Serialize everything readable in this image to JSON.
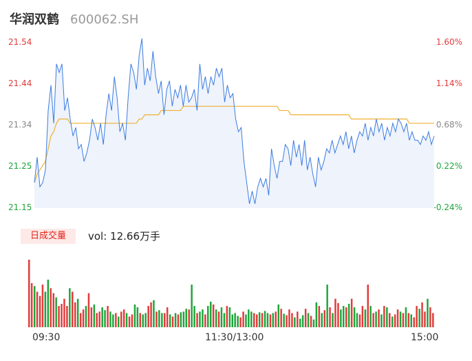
{
  "header": {
    "name": "华润双鹤",
    "code": "600062.SH"
  },
  "volume_panel": {
    "tag": "日成交量",
    "label": "vol: 12.66万手"
  },
  "colors": {
    "price_line": "#3b7be0",
    "avg_line": "#f0b030",
    "fill": "#eef3fc",
    "up": "#e23b3b",
    "down": "#1ea53a",
    "grid_text": "#888888"
  },
  "chart_data": [
    {
      "type": "line",
      "x_labels": [
        "09:30",
        "11:30/13:00",
        "15:00"
      ],
      "ylim": [
        21.15,
        21.54
      ],
      "y_ticks": [
        {
          "price": "21.54",
          "pct": "1.60%",
          "cls": "up"
        },
        {
          "price": "21.44",
          "pct": "1.14%",
          "cls": "up"
        },
        {
          "price": "21.34",
          "pct": "0.68%",
          "cls": "flat"
        },
        {
          "price": "21.25",
          "pct": "0.22%",
          "cls": "down"
        },
        {
          "price": "21.15",
          "pct": "-0.24%",
          "cls": "down"
        }
      ],
      "series": [
        {
          "values": [
            21.21,
            21.27,
            21.2,
            21.21,
            21.24,
            21.38,
            21.44,
            21.35,
            21.49,
            21.47,
            21.49,
            21.38,
            21.41,
            21.36,
            21.32,
            21.34,
            21.29,
            21.3,
            21.26,
            21.28,
            21.31,
            21.36,
            21.34,
            21.31,
            21.35,
            21.3,
            21.37,
            21.42,
            21.38,
            21.46,
            21.41,
            21.33,
            21.35,
            21.31,
            21.41,
            21.49,
            21.47,
            21.43,
            21.51,
            21.55,
            21.44,
            21.48,
            21.45,
            21.52,
            21.46,
            21.42,
            21.45,
            21.37,
            21.43,
            21.45,
            21.39,
            21.43,
            21.41,
            21.44,
            21.39,
            21.44,
            21.4,
            21.41,
            21.43,
            21.38,
            21.49,
            21.43,
            21.46,
            21.42,
            21.46,
            21.44,
            21.48,
            21.46,
            21.48,
            21.4,
            21.44,
            21.41,
            21.42,
            21.36,
            21.33,
            21.34,
            21.26,
            21.21,
            21.16,
            21.19,
            21.16,
            21.2,
            21.22,
            21.2,
            21.22,
            21.18,
            21.29,
            21.25,
            21.22,
            21.26,
            21.26,
            21.3,
            21.29,
            21.25,
            21.31,
            21.27,
            21.3,
            21.25,
            21.31,
            21.24,
            21.27,
            21.23,
            21.2,
            21.27,
            21.24,
            21.26,
            21.29,
            21.28,
            21.31,
            21.28,
            21.3,
            21.32,
            21.3,
            21.33,
            21.29,
            21.32,
            21.28,
            21.31,
            21.33,
            21.32,
            21.35,
            21.31,
            21.34,
            21.32,
            21.36,
            21.33,
            21.35,
            21.31,
            21.34,
            21.32,
            21.35,
            21.33,
            21.36,
            21.35,
            21.33,
            21.35,
            21.31,
            21.33,
            21.31,
            21.31,
            21.3,
            21.32,
            21.31,
            21.33,
            21.3,
            21.32
          ]
        },
        {
          "values": [
            21.21,
            21.23,
            21.24,
            21.25,
            21.26,
            21.29,
            21.32,
            21.33,
            21.35,
            21.36,
            21.36,
            21.36,
            21.36,
            21.35,
            21.35,
            21.35,
            21.35,
            21.35,
            21.35,
            21.35,
            21.35,
            21.35,
            21.35,
            21.35,
            21.35,
            21.35,
            21.35,
            21.35,
            21.35,
            21.35,
            21.35,
            21.35,
            21.35,
            21.35,
            21.35,
            21.35,
            21.35,
            21.35,
            21.36,
            21.36,
            21.37,
            21.37,
            21.37,
            21.37,
            21.37,
            21.37,
            21.38,
            21.38,
            21.38,
            21.38,
            21.38,
            21.38,
            21.38,
            21.38,
            21.39,
            21.39,
            21.39,
            21.39,
            21.39,
            21.39,
            21.39,
            21.39,
            21.39,
            21.39,
            21.39,
            21.39,
            21.39,
            21.39,
            21.39,
            21.39,
            21.39,
            21.39,
            21.39,
            21.39,
            21.39,
            21.39,
            21.39,
            21.39,
            21.39,
            21.39,
            21.39,
            21.39,
            21.39,
            21.39,
            21.39,
            21.39,
            21.39,
            21.39,
            21.39,
            21.38,
            21.38,
            21.38,
            21.38,
            21.37,
            21.37,
            21.37,
            21.37,
            21.37,
            21.37,
            21.37,
            21.37,
            21.37,
            21.37,
            21.37,
            21.37,
            21.37,
            21.37,
            21.37,
            21.37,
            21.37,
            21.37,
            21.37,
            21.37,
            21.37,
            21.37,
            21.36,
            21.36,
            21.36,
            21.36,
            21.36,
            21.36,
            21.36,
            21.36,
            21.36,
            21.36,
            21.36,
            21.36,
            21.36,
            21.36,
            21.36,
            21.36,
            21.36,
            21.36,
            21.36,
            21.36,
            21.36,
            21.35,
            21.35,
            21.35,
            21.35,
            21.35,
            21.35,
            21.35,
            21.35,
            21.35,
            21.35
          ]
        }
      ]
    },
    {
      "type": "bar",
      "values": [
        95,
        62,
        58,
        50,
        44,
        60,
        50,
        67,
        55,
        48,
        42,
        30,
        33,
        40,
        30,
        55,
        50,
        35,
        40,
        20,
        25,
        30,
        48,
        28,
        32,
        20,
        22,
        28,
        24,
        30,
        22,
        18,
        20,
        15,
        22,
        25,
        20,
        15,
        18,
        32,
        28,
        20,
        18,
        20,
        30,
        35,
        38,
        22,
        24,
        20,
        20,
        28,
        18,
        15,
        20,
        18,
        21,
        22,
        26,
        25,
        60,
        30,
        20,
        22,
        25,
        18,
        30,
        36,
        32,
        25,
        22,
        28,
        20,
        30,
        28,
        18,
        20,
        16,
        14,
        22,
        18,
        25,
        22,
        20,
        18,
        21,
        20,
        23,
        20,
        18,
        20,
        22,
        32,
        26,
        19,
        17,
        25,
        20,
        14,
        22,
        12,
        17,
        26,
        20,
        16,
        11,
        35,
        30,
        20,
        24,
        60,
        28,
        20,
        40,
        34,
        25,
        30,
        28,
        33,
        40,
        28,
        20,
        18,
        30,
        25,
        60,
        30,
        20,
        22,
        25,
        18,
        30,
        28,
        20,
        15,
        18,
        25,
        22,
        20,
        28,
        20,
        18,
        14,
        30,
        26,
        35,
        22,
        40,
        28,
        20
      ],
      "colors": [
        "r",
        "r",
        "g",
        "r",
        "r",
        "r",
        "g",
        "g",
        "r",
        "r",
        "g",
        "r",
        "r",
        "r",
        "r",
        "g",
        "r",
        "r",
        "g",
        "r",
        "r",
        "g",
        "r",
        "r",
        "g",
        "r",
        "r",
        "g",
        "g",
        "r",
        "g",
        "g",
        "r",
        "g",
        "r",
        "r",
        "g",
        "r",
        "r",
        "g",
        "g",
        "r",
        "g",
        "g",
        "r",
        "r",
        "g",
        "r",
        "g",
        "g",
        "r",
        "r",
        "g",
        "r",
        "g",
        "r",
        "g",
        "g",
        "g",
        "r",
        "g",
        "g",
        "r",
        "g",
        "g",
        "r",
        "g",
        "g",
        "r",
        "g",
        "r",
        "g",
        "g",
        "r",
        "g",
        "g",
        "g",
        "g",
        "r",
        "r",
        "g",
        "g",
        "g",
        "r",
        "r",
        "g",
        "r",
        "g",
        "g",
        "r",
        "g",
        "r",
        "g",
        "r",
        "g",
        "r",
        "r",
        "r",
        "g",
        "r",
        "g",
        "g",
        "r",
        "g",
        "r",
        "g",
        "g",
        "r",
        "g",
        "r",
        "g",
        "r",
        "g",
        "r",
        "r",
        "g",
        "g",
        "r",
        "g",
        "r",
        "g",
        "g",
        "r",
        "r",
        "g",
        "r",
        "g",
        "r",
        "g",
        "r",
        "g",
        "r",
        "g",
        "r",
        "g",
        "r",
        "r",
        "g",
        "r",
        "g",
        "r",
        "g",
        "r",
        "r",
        "g",
        "r",
        "r",
        "g",
        "r",
        "r"
      ]
    }
  ]
}
